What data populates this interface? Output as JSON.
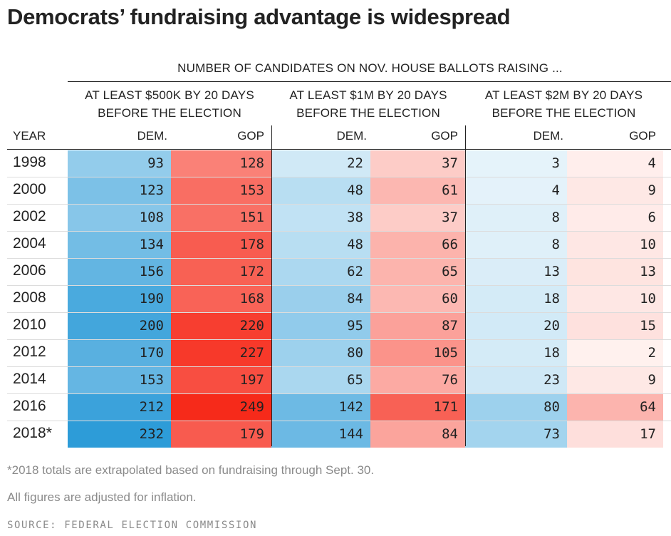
{
  "chart_data": {
    "type": "table",
    "title": "Democrats’ fundraising advantage is widespread",
    "header": "NUMBER OF CANDIDATES ON NOV. HOUSE BALLOTS RAISING ...",
    "year_label": "YEAR",
    "groups": [
      {
        "label_line1": "AT LEAST $500K BY 20 DAYS",
        "label_line2": "BEFORE THE ELECTION"
      },
      {
        "label_line1": "AT LEAST $1M BY 20 DAYS",
        "label_line2": "BEFORE THE ELECTION"
      },
      {
        "label_line1": "AT LEAST $2M BY 20 DAYS",
        "label_line2": "BEFORE THE ELECTION"
      }
    ],
    "dem_label": "DEM.",
    "gop_label": "GOP",
    "rows": [
      {
        "year": "1998",
        "values": [
          93,
          128,
          22,
          37,
          3,
          4
        ]
      },
      {
        "year": "2000",
        "values": [
          123,
          153,
          48,
          61,
          4,
          9
        ]
      },
      {
        "year": "2002",
        "values": [
          108,
          151,
          38,
          37,
          8,
          6
        ]
      },
      {
        "year": "2004",
        "values": [
          134,
          178,
          48,
          66,
          8,
          10
        ]
      },
      {
        "year": "2006",
        "values": [
          156,
          172,
          62,
          65,
          13,
          13
        ]
      },
      {
        "year": "2008",
        "values": [
          190,
          168,
          84,
          60,
          18,
          10
        ]
      },
      {
        "year": "2010",
        "values": [
          200,
          220,
          95,
          87,
          20,
          15
        ]
      },
      {
        "year": "2012",
        "values": [
          170,
          227,
          80,
          105,
          18,
          2
        ]
      },
      {
        "year": "2014",
        "values": [
          153,
          197,
          65,
          76,
          23,
          9
        ]
      },
      {
        "year": "2016",
        "values": [
          212,
          249,
          142,
          171,
          80,
          64
        ]
      },
      {
        "year": "2018*",
        "values": [
          232,
          179,
          144,
          84,
          73,
          17
        ]
      }
    ],
    "colors": {
      "dem": "#2196d6",
      "gop": "#f62a1a"
    }
  },
  "notes": {
    "footnote": "*2018 totals are extrapolated based on fundraising through Sept. 30.",
    "adjusted": "All figures are adjusted for inflation.",
    "source": "SOURCE: FEDERAL ELECTION COMMISSION"
  }
}
